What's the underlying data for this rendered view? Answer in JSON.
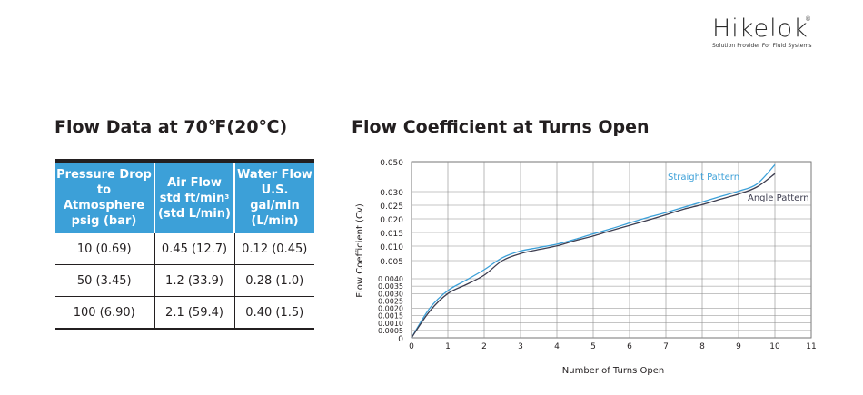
{
  "brand": {
    "name": "Hikelok",
    "registered": "®",
    "tagline": "Solution Provider For Fluid Systems"
  },
  "flow_table": {
    "title": "Flow Data at 70℉(20℃)",
    "headers": [
      [
        "Pressure Drop",
        "to Atmosphere",
        "psig (bar)"
      ],
      [
        "Air Flow",
        "std ft/min",
        "(std L/min)"
      ],
      [
        "Water Flow",
        "U.S. gal/min",
        "(L/min)"
      ]
    ],
    "air_unit_sup": "3",
    "rows": [
      [
        "10 (0.69)",
        "0.45 (12.7)",
        "0.12 (0.45)"
      ],
      [
        "50 (3.45)",
        "1.2 (33.9)",
        "0.28 (1.0)"
      ],
      [
        "100 (6.90)",
        "2.1 (59.4)",
        "0.40 (1.5)"
      ]
    ],
    "header_color": "#3ca0d8"
  },
  "chart_data": {
    "type": "line",
    "title": "Flow Coefficient at Turns Open",
    "xlabel": "Number of Turns Open",
    "ylabel": "Flow Coefficient (Cv)",
    "xlim": [
      0,
      11
    ],
    "x_ticks": [
      "0",
      "1",
      "2",
      "3",
      "4",
      "5",
      "6",
      "7",
      "8",
      "9",
      "10",
      "11"
    ],
    "y_ticks": [
      "0.050",
      "0.030",
      "0.025",
      "0.020",
      "0.015",
      "0.010",
      "0.005",
      "0.0040",
      "0.0035",
      "0.0030",
      "0.0025",
      "0.0020",
      "0.0015",
      "0.0010",
      "0.0005",
      "0"
    ],
    "y_tick_values": [
      0.05,
      0.03,
      0.025,
      0.02,
      0.015,
      0.01,
      0.005,
      0.004,
      0.0035,
      0.003,
      0.0025,
      0.002,
      0.0015,
      0.001,
      0.0005,
      0
    ],
    "y_scale": "non-linear (compressed upper range)",
    "grid": true,
    "series": [
      {
        "name": "Straight Pattern",
        "color": "#3ca0d8",
        "x": [
          0,
          0.5,
          1,
          1.5,
          2,
          2.5,
          3,
          3.5,
          4,
          4.5,
          5,
          5.5,
          6,
          6.5,
          7,
          7.5,
          8,
          8.5,
          9,
          9.5,
          10
        ],
        "y": [
          0,
          0.002,
          0.0032,
          0.0039,
          0.0045,
          0.006,
          0.0083,
          0.0095,
          0.0107,
          0.0125,
          0.0145,
          0.0164,
          0.0185,
          0.0205,
          0.0223,
          0.0243,
          0.0262,
          0.0282,
          0.0303,
          0.035,
          0.048
        ]
      },
      {
        "name": "Angle Pattern",
        "color": "#3d3d4f",
        "x": [
          0,
          0.5,
          1,
          1.5,
          2,
          2.5,
          3,
          3.5,
          4,
          4.5,
          5,
          5.5,
          6,
          6.5,
          7,
          7.5,
          8,
          8.5,
          9,
          9.5,
          10
        ],
        "y": [
          0,
          0.0018,
          0.003,
          0.0036,
          0.0042,
          0.005,
          0.0074,
          0.0088,
          0.0101,
          0.012,
          0.0137,
          0.0157,
          0.0176,
          0.0195,
          0.0215,
          0.0236,
          0.0252,
          0.0272,
          0.0291,
          0.033,
          0.042
        ]
      }
    ]
  }
}
